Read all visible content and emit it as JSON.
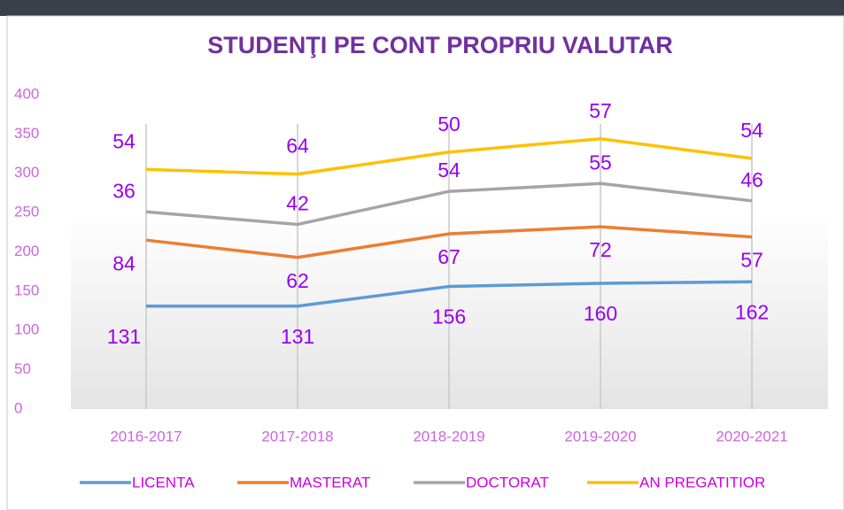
{
  "chart_data": {
    "type": "stacked-line",
    "title": "STUDENŢI PE CONT PROPRIU VALUTAR",
    "categories": [
      "2016-2017",
      "2017-2018",
      "2018-2019",
      "2019-2020",
      "2020-2021"
    ],
    "series": [
      {
        "name": "LICENTA",
        "color": "#5b9bd5",
        "values": [
          131,
          131,
          156,
          160,
          162
        ]
      },
      {
        "name": "MASTERAT",
        "color": "#ed7d31",
        "values": [
          84,
          62,
          67,
          72,
          57
        ]
      },
      {
        "name": "DOCTORAT",
        "color": "#a5a5a5",
        "values": [
          36,
          42,
          54,
          55,
          46
        ]
      },
      {
        "name": "AN PREGATITIOR",
        "color": "#ffc000",
        "values": [
          54,
          64,
          50,
          57,
          54
        ]
      }
    ],
    "ylim": [
      0,
      400
    ],
    "yticks": [
      0,
      50,
      100,
      150,
      200,
      250,
      300,
      350,
      400
    ],
    "legend": "bottom"
  }
}
